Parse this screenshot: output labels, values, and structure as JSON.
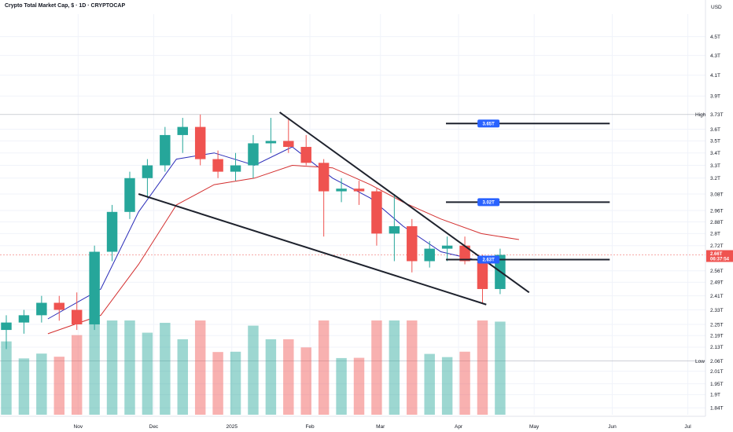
{
  "header": {
    "title": "Crypto Total Market Cap, $ · 1D · CRYPTOCAP",
    "currency": "USD"
  },
  "chart_data": {
    "type": "candlestick",
    "y_scale": "log",
    "ylim": [
      1.81,
      4.75
    ],
    "xlim": [
      "2024-10-01",
      "2025-07-08"
    ],
    "y_ticks": [
      {
        "v": 4.5,
        "label": "4.5T"
      },
      {
        "v": 4.3,
        "label": "4.3T"
      },
      {
        "v": 4.1,
        "label": "4.1T"
      },
      {
        "v": 3.9,
        "label": "3.9T"
      },
      {
        "v": 3.6,
        "label": "3.6T"
      },
      {
        "v": 3.5,
        "label": "3.5T"
      },
      {
        "v": 3.4,
        "label": "3.4T"
      },
      {
        "v": 3.3,
        "label": "3.3T"
      },
      {
        "v": 3.2,
        "label": "3.2T"
      },
      {
        "v": 3.08,
        "label": "3.08T"
      },
      {
        "v": 2.96,
        "label": "2.96T"
      },
      {
        "v": 2.88,
        "label": "2.88T"
      },
      {
        "v": 2.8,
        "label": "2.8T"
      },
      {
        "v": 2.72,
        "label": "2.72T"
      },
      {
        "v": 2.56,
        "label": "2.56T"
      },
      {
        "v": 2.49,
        "label": "2.49T"
      },
      {
        "v": 2.41,
        "label": "2.41T"
      },
      {
        "v": 2.33,
        "label": "2.33T"
      },
      {
        "v": 2.25,
        "label": "2.25T"
      },
      {
        "v": 2.19,
        "label": "2.19T"
      },
      {
        "v": 2.13,
        "label": "2.13T"
      },
      {
        "v": 2.01,
        "label": "2.01T"
      },
      {
        "v": 1.95,
        "label": "1.95T"
      },
      {
        "v": 1.9,
        "label": "1.9T"
      },
      {
        "v": 1.84,
        "label": "1.84T"
      }
    ],
    "x_ticks": [
      {
        "date": "2024-11-01",
        "label": "Nov"
      },
      {
        "date": "2024-12-01",
        "label": "Dec"
      },
      {
        "date": "2025-01-01",
        "label": "2025"
      },
      {
        "date": "2025-02-01",
        "label": "Feb"
      },
      {
        "date": "2025-03-01",
        "label": "Mar"
      },
      {
        "date": "2025-04-01",
        "label": "Apr"
      },
      {
        "date": "2025-05-01",
        "label": "May"
      },
      {
        "date": "2025-06-01",
        "label": "Jun"
      },
      {
        "date": "2025-07-01",
        "label": "Jul"
      }
    ],
    "high": {
      "label": "High",
      "value": 3.73,
      "value_label": "3.73T"
    },
    "low": {
      "label": "Low",
      "value": 2.06,
      "value_label": "2.06T"
    },
    "last_price": {
      "value": 2.66,
      "label": "2.66T",
      "countdown": "06:37:54"
    },
    "target_levels": [
      {
        "value": 3.65,
        "label": "3.65T",
        "start": "2025-03-27",
        "end": "2025-05-31"
      },
      {
        "value": 3.02,
        "label": "3.02T",
        "start": "2025-03-27",
        "end": "2025-05-31"
      },
      {
        "value": 2.63,
        "label": "2.63T",
        "start": "2025-03-27",
        "end": "2025-05-31"
      }
    ],
    "wedge_lines": [
      {
        "from": {
          "date": "2025-01-20",
          "value": 3.75
        },
        "to": {
          "date": "2025-04-29",
          "value": 2.43
        }
      },
      {
        "from": {
          "date": "2024-11-25",
          "value": 3.08
        },
        "to": {
          "date": "2025-04-12",
          "value": 2.36
        }
      }
    ],
    "ohlc_weekly": [
      {
        "d": "2024-09-30",
        "o": 2.22,
        "h": 2.3,
        "l": 2.12,
        "c": 2.26
      },
      {
        "d": "2024-10-07",
        "o": 2.26,
        "h": 2.33,
        "l": 2.2,
        "c": 2.3
      },
      {
        "d": "2024-10-14",
        "o": 2.3,
        "h": 2.41,
        "l": 2.26,
        "c": 2.37
      },
      {
        "d": "2024-10-21",
        "o": 2.37,
        "h": 2.41,
        "l": 2.27,
        "c": 2.33
      },
      {
        "d": "2024-10-28",
        "o": 2.33,
        "h": 2.43,
        "l": 2.22,
        "c": 2.25
      },
      {
        "d": "2024-11-04",
        "o": 2.25,
        "h": 2.72,
        "l": 2.22,
        "c": 2.68
      },
      {
        "d": "2024-11-11",
        "o": 2.68,
        "h": 3.0,
        "l": 2.62,
        "c": 2.95
      },
      {
        "d": "2024-11-18",
        "o": 2.95,
        "h": 3.25,
        "l": 2.9,
        "c": 3.2
      },
      {
        "d": "2024-11-25",
        "o": 3.2,
        "h": 3.35,
        "l": 3.05,
        "c": 3.3
      },
      {
        "d": "2024-12-02",
        "o": 3.3,
        "h": 3.62,
        "l": 3.25,
        "c": 3.55
      },
      {
        "d": "2024-12-09",
        "o": 3.55,
        "h": 3.7,
        "l": 3.4,
        "c": 3.62
      },
      {
        "d": "2024-12-16",
        "o": 3.62,
        "h": 3.73,
        "l": 3.3,
        "c": 3.35
      },
      {
        "d": "2024-12-23",
        "o": 3.35,
        "h": 3.42,
        "l": 3.2,
        "c": 3.25
      },
      {
        "d": "2024-12-30",
        "o": 3.25,
        "h": 3.4,
        "l": 3.18,
        "c": 3.3
      },
      {
        "d": "2025-01-06",
        "o": 3.3,
        "h": 3.55,
        "l": 3.2,
        "c": 3.48
      },
      {
        "d": "2025-01-13",
        "o": 3.48,
        "h": 3.7,
        "l": 3.4,
        "c": 3.5
      },
      {
        "d": "2025-01-20",
        "o": 3.5,
        "h": 3.7,
        "l": 3.4,
        "c": 3.45
      },
      {
        "d": "2025-01-27",
        "o": 3.45,
        "h": 3.55,
        "l": 3.3,
        "c": 3.32
      },
      {
        "d": "2025-02-03",
        "o": 3.32,
        "h": 3.35,
        "l": 2.78,
        "c": 3.1
      },
      {
        "d": "2025-02-10",
        "o": 3.1,
        "h": 3.2,
        "l": 3.02,
        "c": 3.12
      },
      {
        "d": "2025-02-17",
        "o": 3.12,
        "h": 3.18,
        "l": 3.0,
        "c": 3.1
      },
      {
        "d": "2025-02-24",
        "o": 3.1,
        "h": 3.12,
        "l": 2.72,
        "c": 2.8
      },
      {
        "d": "2025-03-03",
        "o": 2.8,
        "h": 3.08,
        "l": 2.62,
        "c": 2.85
      },
      {
        "d": "2025-03-10",
        "o": 2.85,
        "h": 2.9,
        "l": 2.55,
        "c": 2.62
      },
      {
        "d": "2025-03-17",
        "o": 2.62,
        "h": 2.75,
        "l": 2.58,
        "c": 2.7
      },
      {
        "d": "2025-03-24",
        "o": 2.7,
        "h": 2.78,
        "l": 2.62,
        "c": 2.72
      },
      {
        "d": "2025-03-31",
        "o": 2.72,
        "h": 2.78,
        "l": 2.6,
        "c": 2.62
      },
      {
        "d": "2025-04-07",
        "o": 2.62,
        "h": 2.66,
        "l": 2.37,
        "c": 2.45
      },
      {
        "d": "2025-04-14",
        "o": 2.45,
        "h": 2.7,
        "l": 2.42,
        "c": 2.66
      }
    ],
    "ema_blue": [
      {
        "d": "2024-10-20",
        "v": 2.28
      },
      {
        "d": "2024-11-10",
        "v": 2.45
      },
      {
        "d": "2024-11-25",
        "v": 2.95
      },
      {
        "d": "2024-12-10",
        "v": 3.35
      },
      {
        "d": "2024-12-25",
        "v": 3.4
      },
      {
        "d": "2025-01-10",
        "v": 3.3
      },
      {
        "d": "2025-01-25",
        "v": 3.45
      },
      {
        "d": "2025-02-10",
        "v": 3.2
      },
      {
        "d": "2025-02-25",
        "v": 3.05
      },
      {
        "d": "2025-03-10",
        "v": 2.85
      },
      {
        "d": "2025-03-25",
        "v": 2.68
      },
      {
        "d": "2025-04-10",
        "v": 2.62
      },
      {
        "d": "2025-04-18",
        "v": 2.64
      }
    ],
    "ema_red": [
      {
        "d": "2024-10-20",
        "v": 2.2
      },
      {
        "d": "2024-11-10",
        "v": 2.3
      },
      {
        "d": "2024-11-25",
        "v": 2.6
      },
      {
        "d": "2024-12-10",
        "v": 3.0
      },
      {
        "d": "2024-12-25",
        "v": 3.15
      },
      {
        "d": "2025-01-10",
        "v": 3.2
      },
      {
        "d": "2025-01-25",
        "v": 3.3
      },
      {
        "d": "2025-02-10",
        "v": 3.28
      },
      {
        "d": "2025-02-25",
        "v": 3.15
      },
      {
        "d": "2025-03-10",
        "v": 3.02
      },
      {
        "d": "2025-03-25",
        "v": 2.9
      },
      {
        "d": "2025-04-10",
        "v": 2.8
      },
      {
        "d": "2025-04-25",
        "v": 2.76
      }
    ]
  },
  "colors": {
    "up": "#26a69a",
    "down": "#ef5350",
    "ema_blue": "#2a2cb8",
    "ema_red": "#d32f2f",
    "tag_blue": "#2962ff",
    "grid": "#f0f3fa",
    "text": "#131722"
  }
}
